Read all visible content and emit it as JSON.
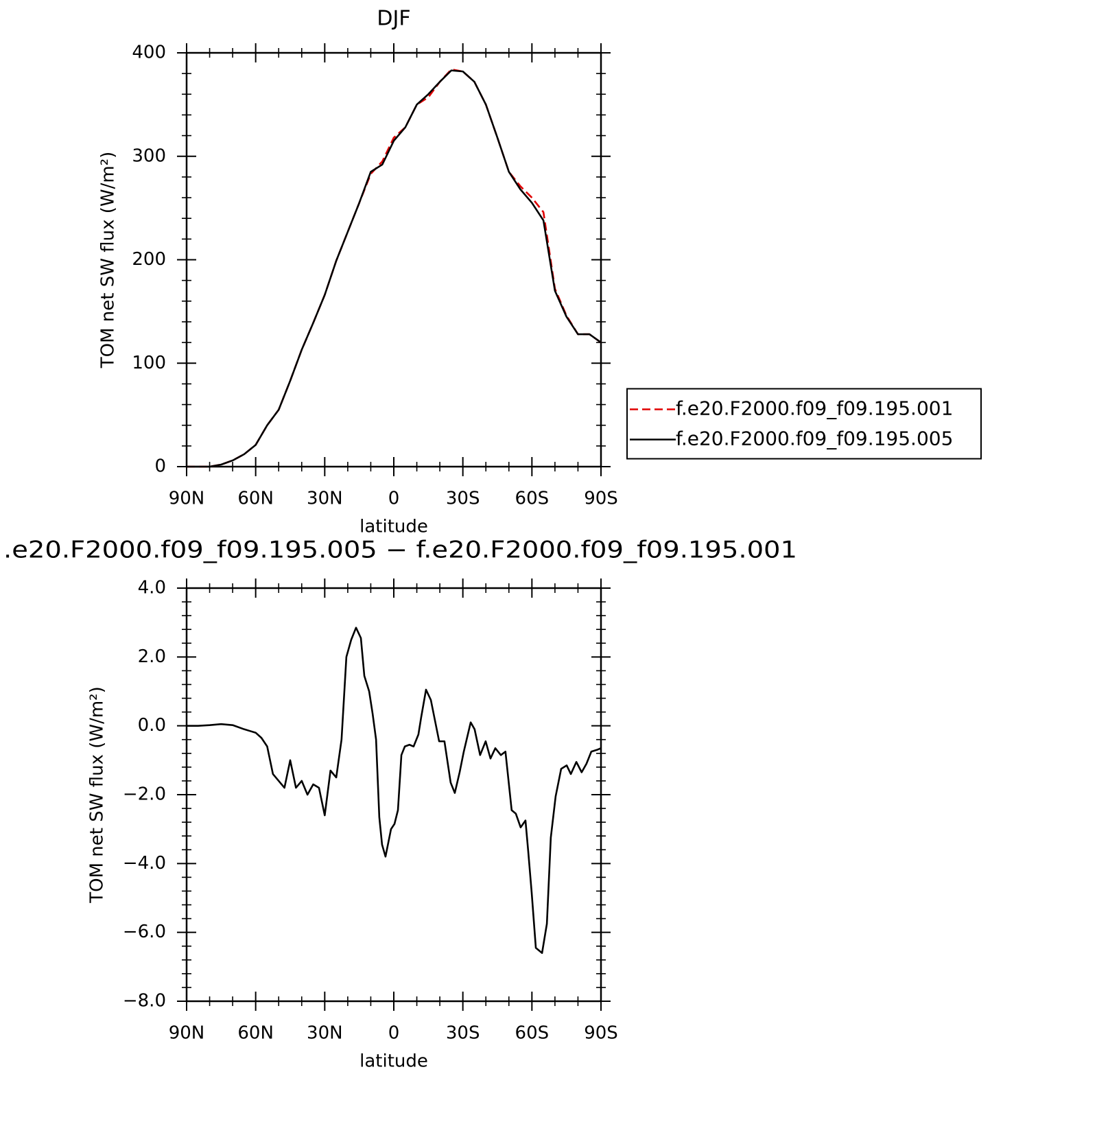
{
  "chart_data": [
    {
      "type": "line",
      "title": "DJF",
      "xlabel": "latitude",
      "ylabel": "TOM net SW flux (W/m²)",
      "x": [
        90,
        85,
        80,
        75,
        70,
        65,
        60,
        55,
        50,
        45,
        40,
        35,
        30,
        25,
        20,
        15,
        10,
        5,
        0,
        -5,
        -10,
        -15,
        -20,
        -25,
        -30,
        -35,
        -40,
        -45,
        -50,
        -55,
        -60,
        -65,
        -70,
        -75,
        -80,
        -85,
        -90
      ],
      "series": [
        {
          "name": "f.e20.F2000.f09_f09.195.001",
          "color": "#e00000",
          "dash": true,
          "values": [
            0,
            0,
            0,
            2,
            6,
            12,
            21,
            40,
            55,
            83,
            113,
            139,
            166,
            199,
            227,
            255,
            283,
            295,
            318,
            328,
            350,
            357,
            372,
            384,
            382,
            372,
            350,
            318,
            285,
            271,
            260,
            246,
            172,
            146,
            128,
            128,
            120
          ]
        },
        {
          "name": "f.e20.F2000.f09_f09.195.005",
          "color": "#000000",
          "dash": false,
          "values": [
            0,
            0,
            0,
            2,
            6,
            12,
            21,
            40,
            55,
            83,
            113,
            139,
            166,
            199,
            227,
            255,
            285,
            292,
            315,
            328,
            350,
            360,
            372,
            383,
            382,
            372,
            350,
            318,
            285,
            268,
            255,
            238,
            170,
            145,
            128,
            128,
            120
          ]
        }
      ],
      "xlim": [
        90,
        -90
      ],
      "xticks": [
        {
          "value": 90,
          "label": "90N"
        },
        {
          "value": 60,
          "label": "60N"
        },
        {
          "value": 30,
          "label": "30N"
        },
        {
          "value": 0,
          "label": "0"
        },
        {
          "value": -30,
          "label": "30S"
        },
        {
          "value": -60,
          "label": "60S"
        },
        {
          "value": -90,
          "label": "90S"
        }
      ],
      "xminorticks": [
        80,
        70,
        50,
        40,
        20,
        10,
        -10,
        -20,
        -40,
        -50,
        -70,
        -80
      ],
      "ylim": [
        0,
        400
      ],
      "yticks": [
        0,
        100,
        200,
        300,
        400
      ],
      "yminorticks": [
        20,
        40,
        60,
        80,
        120,
        140,
        160,
        180,
        220,
        240,
        260,
        280,
        320,
        340,
        360,
        380
      ],
      "legend": "right"
    },
    {
      "type": "line",
      "title": ".e20.F2000.f09_f09.195.005 − f.e20.F2000.f09_f09.195.001",
      "xlabel": "latitude",
      "ylabel": "TOM net SW flux (W/m²)",
      "x": [
        90,
        85,
        80,
        75,
        70,
        65,
        62.5,
        60,
        57.5,
        55,
        52.5,
        50,
        47.5,
        45,
        42.5,
        40,
        37.5,
        35,
        32.5,
        30,
        27.5,
        25,
        22.7,
        20.6,
        18.5,
        16.4,
        14.3,
        12.8,
        10.7,
        9.2,
        7.7,
        6.3,
        5.1,
        3.6,
        1.2,
        -0.3,
        -1.8,
        -3.3,
        -4.8,
        -6.8,
        -8.6,
        -10.7,
        -11.9,
        -14.0,
        -16.1,
        -19.7,
        -22.0,
        -24.7,
        -26.5,
        -28.6,
        -30.4,
        -33.4,
        -35.1,
        -37.5,
        -39.9,
        -42.0,
        -44.1,
        -46.5,
        -48.5,
        -51.2,
        -53.0,
        -55.1,
        -57.2,
        -58.4,
        -59.9,
        -61.7,
        -64.4,
        -66.5,
        -68.2,
        -70.3,
        -72.7,
        -75.1,
        -76.9,
        -79.3,
        -81.6,
        -83.7,
        -85.8,
        -88.2,
        -90
      ],
      "series": [
        {
          "color": "#000000",
          "dash": false,
          "values": [
            0,
            0,
            0.02,
            0.05,
            0.02,
            -0.1,
            -0.15,
            -0.2,
            -0.35,
            -0.6,
            -1.4,
            -1.6,
            -1.8,
            -1.0,
            -1.8,
            -1.6,
            -2.0,
            -1.7,
            -1.8,
            -2.6,
            -1.3,
            -1.5,
            -0.4,
            2.0,
            2.5,
            2.85,
            2.55,
            1.45,
            1.0,
            0.35,
            -0.4,
            -2.65,
            -3.45,
            -3.8,
            -3.0,
            -2.85,
            -2.45,
            -0.85,
            -0.6,
            -0.55,
            -0.6,
            -0.25,
            0.25,
            1.05,
            0.75,
            -0.45,
            -0.45,
            -1.65,
            -1.95,
            -1.35,
            -0.75,
            0.1,
            -0.1,
            -0.85,
            -0.45,
            -0.95,
            -0.65,
            -0.85,
            -0.75,
            -2.45,
            -2.55,
            -2.95,
            -2.75,
            -3.65,
            -4.85,
            -6.45,
            -6.6,
            -5.75,
            -3.25,
            -2.05,
            -1.25,
            -1.15,
            -1.4,
            -1.05,
            -1.35,
            -1.1,
            -0.75,
            -0.7,
            -0.65
          ]
        }
      ],
      "xlim": [
        90,
        -90
      ],
      "xticks": [
        {
          "value": 90,
          "label": "90N"
        },
        {
          "value": 60,
          "label": "60N"
        },
        {
          "value": 30,
          "label": "30N"
        },
        {
          "value": 0,
          "label": "0"
        },
        {
          "value": -30,
          "label": "30S"
        },
        {
          "value": -60,
          "label": "60S"
        },
        {
          "value": -90,
          "label": "90S"
        }
      ],
      "xminorticks": [
        80,
        70,
        50,
        40,
        20,
        10,
        -10,
        -20,
        -40,
        -50,
        -70,
        -80
      ],
      "ylim": [
        -8,
        4
      ],
      "yticks": [
        {
          "value": -8,
          "label": "−8.0"
        },
        {
          "value": -6,
          "label": "−6.0"
        },
        {
          "value": -4,
          "label": "−4.0"
        },
        {
          "value": -2,
          "label": "−2.0"
        },
        {
          "value": 0,
          "label": "0.0"
        },
        {
          "value": 2,
          "label": "2.0"
        },
        {
          "value": 4,
          "label": "4.0"
        }
      ],
      "yminorticks": [
        -7.6,
        -7.2,
        -6.8,
        -6.4,
        -5.6,
        -5.2,
        -4.8,
        -4.4,
        -3.6,
        -3.2,
        -2.8,
        -2.4,
        -1.6,
        -1.2,
        -0.8,
        -0.4,
        0.4,
        0.8,
        1.2,
        1.6,
        2.4,
        2.8,
        3.2,
        3.6
      ]
    }
  ]
}
